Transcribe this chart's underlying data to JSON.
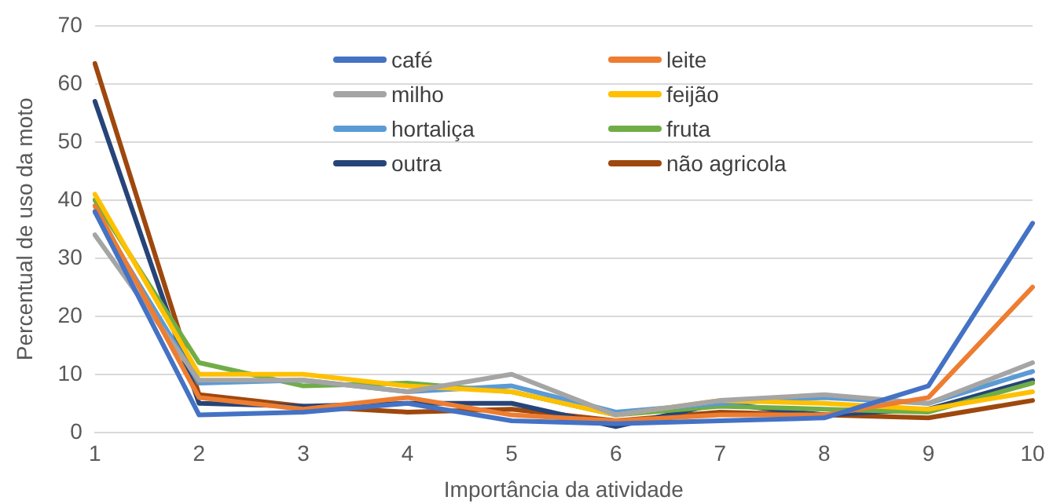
{
  "chart_data": {
    "type": "line",
    "xlabel": "Importância da atividade",
    "ylabel": "Percentual de uso da moto",
    "categories": [
      "1",
      "2",
      "3",
      "4",
      "5",
      "6",
      "7",
      "8",
      "9",
      "10"
    ],
    "ylim": [
      0,
      70
    ],
    "yticks": [
      0,
      10,
      20,
      30,
      40,
      50,
      60,
      70
    ],
    "grid": "y",
    "legend": "top",
    "marker": "none",
    "line_style": "solid",
    "series": [
      {
        "name": "café",
        "color": "#4472c4",
        "values": [
          38,
          3,
          3.5,
          5,
          2,
          1.5,
          2,
          2.5,
          8,
          36
        ]
      },
      {
        "name": "leite",
        "color": "#ed7d31",
        "values": [
          39,
          6,
          4,
          6,
          3,
          2,
          3,
          3,
          6,
          25
        ]
      },
      {
        "name": "milho",
        "color": "#a5a5a5",
        "values": [
          34,
          9,
          9,
          7,
          10,
          3,
          5.5,
          6.5,
          5,
          12
        ]
      },
      {
        "name": "feijão",
        "color": "#ffc000",
        "values": [
          41,
          10,
          10,
          8,
          7,
          3,
          5.5,
          5,
          4,
          7
        ]
      },
      {
        "name": "hortaliça",
        "color": "#5b9bd5",
        "values": [
          38,
          8.5,
          9,
          7,
          8,
          3.5,
          5,
          6,
          5,
          10.5
        ]
      },
      {
        "name": "fruta",
        "color": "#70ad47",
        "values": [
          40,
          12,
          8,
          8.5,
          7,
          3,
          4.5,
          4,
          3.5,
          8.5
        ]
      },
      {
        "name": "outra",
        "color": "#264478",
        "values": [
          57,
          5,
          4.5,
          5,
          5,
          1,
          5,
          3,
          4,
          9
        ]
      },
      {
        "name": "não agricola",
        "color": "#9e480e",
        "values": [
          63.5,
          6.5,
          4.5,
          3.5,
          4,
          2,
          3.5,
          3,
          2.5,
          5.5
        ]
      }
    ]
  }
}
